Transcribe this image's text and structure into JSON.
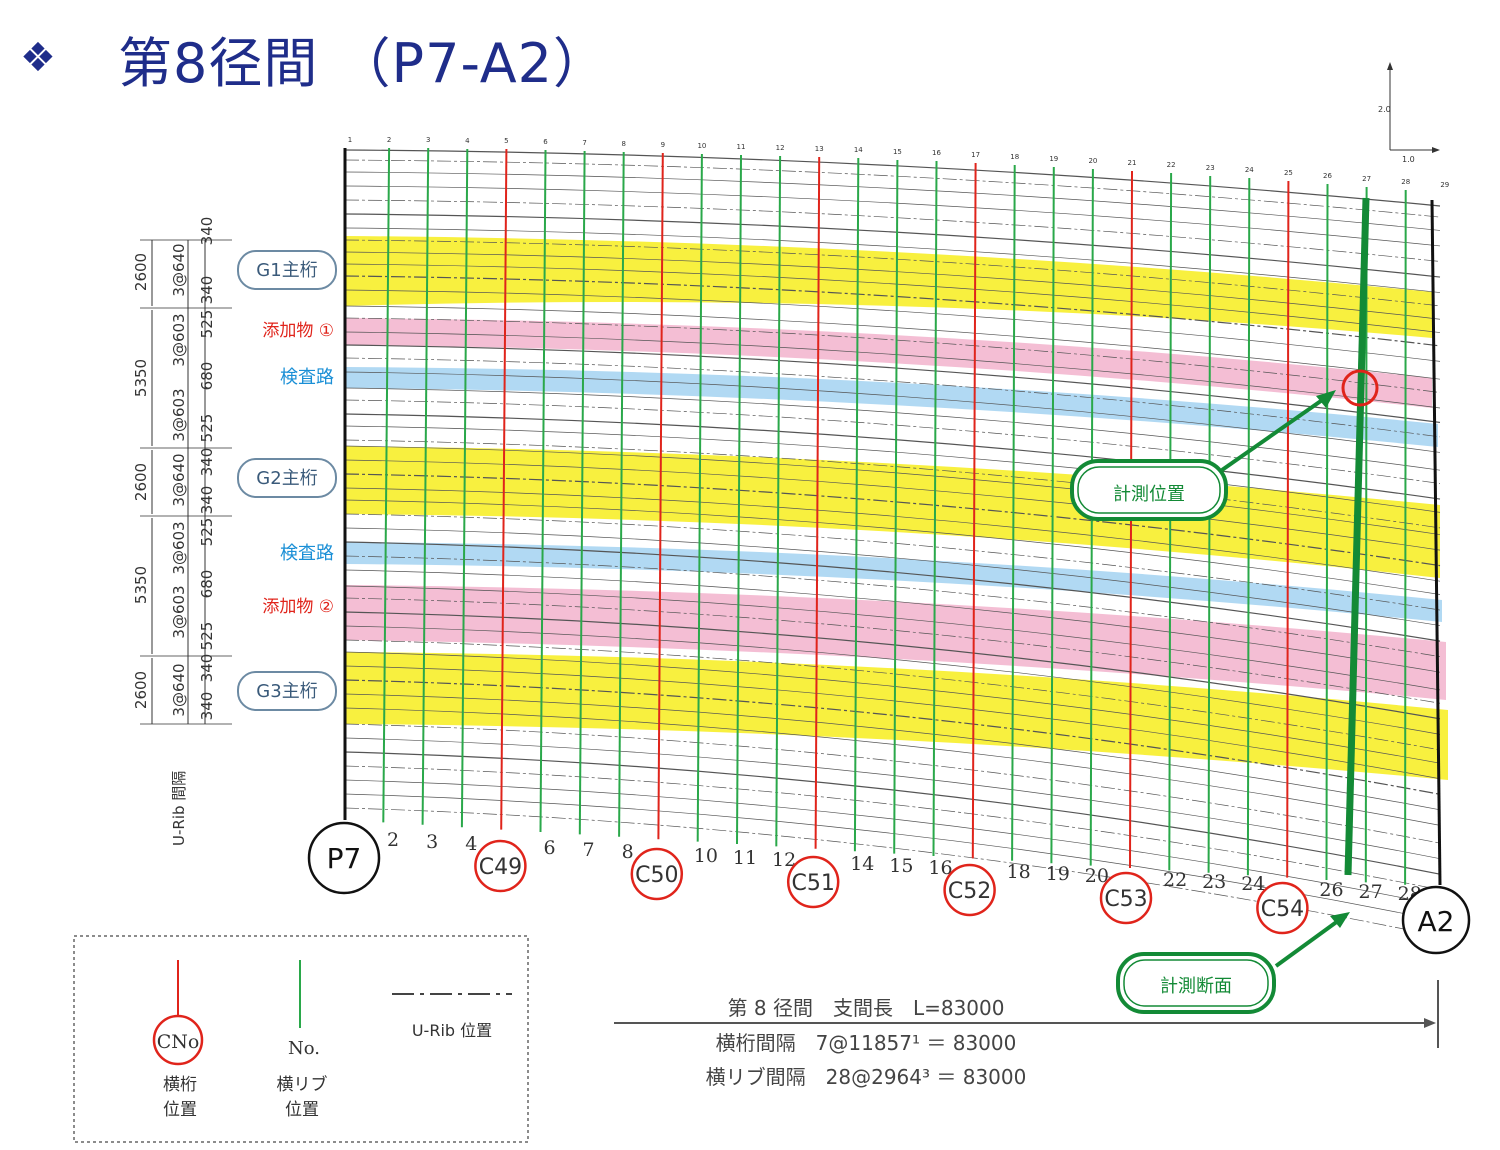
{
  "title": {
    "bullet": "❖",
    "text": "第8径間 （P7-A2）"
  },
  "girders": [
    "G1主桁",
    "G2主桁",
    "G3主桁"
  ],
  "bands": {
    "additive1": "添加物 ①",
    "inspect1": "検査路",
    "inspect2": "検査路",
    "additive2": "添加物 ②"
  },
  "left_dims": {
    "outer": [
      "2600",
      "5350",
      "2600",
      "5350",
      "2600"
    ],
    "mid": [
      "3@640",
      "3@603",
      "3@603",
      "3@640",
      "3@603",
      "3@603",
      "3@640"
    ],
    "inner": [
      "340",
      "340",
      "525",
      "680",
      "525",
      "340",
      "340",
      "525",
      "680",
      "525",
      "340",
      "340"
    ],
    "urib_label": "U-Rib 間隔"
  },
  "piers": {
    "start": "P7",
    "end": "A2"
  },
  "crossbeams": [
    "C49",
    "C50",
    "C51",
    "C52",
    "C53",
    "C54"
  ],
  "rib_numbers": [
    "2",
    "3",
    "4",
    "6",
    "7",
    "8",
    "10",
    "11",
    "12",
    "14",
    "15",
    "16",
    "18",
    "19",
    "20",
    "22",
    "23",
    "24",
    "26",
    "27",
    "28"
  ],
  "top_numbers": [
    "1",
    "2",
    "3",
    "4",
    "5",
    "6",
    "7",
    "8",
    "9",
    "10",
    "11",
    "12",
    "13",
    "14",
    "15",
    "16",
    "17",
    "18",
    "19",
    "20",
    "21",
    "22",
    "23",
    "24",
    "25",
    "26",
    "27",
    "28",
    "29"
  ],
  "callouts": {
    "position": "計測位置",
    "section": "計測断面"
  },
  "axis_marks": {
    "up": "2.0",
    "right": "1.0"
  },
  "legend": {
    "crossbeam_symbol": "CNo",
    "crossbeam_caption": [
      "横桁",
      "位置"
    ],
    "rib_symbol": "No.",
    "rib_caption": [
      "横リブ",
      "位置"
    ],
    "urib_caption": "U-Rib 位置"
  },
  "info": {
    "line1": "第 8 径間　支間長　L=83000",
    "line2": "横桁間隔　7@11857¹ ＝ 83000",
    "line3": "横リブ間隔　28@2964³ ＝ 83000"
  },
  "colors": {
    "title": "#1f2d8a",
    "girder_band": "#f7ee2a",
    "additive_band": "#f2b3cd",
    "inspection_band": "#a9d5f2",
    "crossbeam_line": "#e0241b",
    "rib_line": "#2aa84a",
    "measure_line": "#138a36"
  }
}
